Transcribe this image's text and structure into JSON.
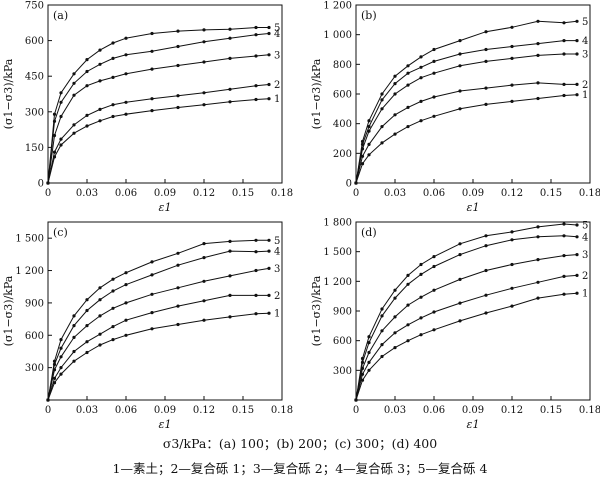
{
  "caption": {
    "conditions": "σ3/kPa：(a) 100；(b) 200；(c) 300；(d) 400",
    "legend": "1—素土；2—复合砾 1；3—复合砾 2；4—复合砾 3；5—复合砾 4"
  },
  "chart_data": [
    {
      "type": "line",
      "panel": "(a)",
      "xlabel": "ε1",
      "ylabel": "(σ1−σ3)/kPa",
      "xlim": [
        0,
        0.18
      ],
      "ylim": [
        0,
        750
      ],
      "xticks": [
        "0",
        "0.03",
        "0.06",
        "0.09",
        "0.12",
        "0.15",
        "0.18"
      ],
      "yticks": [
        "0",
        "150",
        "300",
        "450",
        "600",
        "750"
      ],
      "grid": false,
      "series": [
        {
          "name": "1",
          "x": [
            0,
            0.005,
            0.01,
            0.02,
            0.03,
            0.04,
            0.05,
            0.06,
            0.08,
            0.1,
            0.12,
            0.14,
            0.16,
            0.17
          ],
          "y": [
            0,
            110,
            160,
            210,
            240,
            262,
            280,
            290,
            305,
            318,
            330,
            342,
            352,
            355
          ]
        },
        {
          "name": "2",
          "x": [
            0,
            0.005,
            0.01,
            0.02,
            0.03,
            0.04,
            0.05,
            0.06,
            0.08,
            0.1,
            0.12,
            0.14,
            0.16,
            0.17
          ],
          "y": [
            0,
            130,
            185,
            245,
            285,
            310,
            330,
            340,
            355,
            368,
            380,
            395,
            410,
            415
          ]
        },
        {
          "name": "3",
          "x": [
            0,
            0.005,
            0.01,
            0.02,
            0.03,
            0.04,
            0.05,
            0.06,
            0.08,
            0.1,
            0.12,
            0.14,
            0.16,
            0.17
          ],
          "y": [
            0,
            200,
            280,
            370,
            410,
            430,
            445,
            460,
            480,
            495,
            510,
            525,
            535,
            540
          ]
        },
        {
          "name": "4",
          "x": [
            0,
            0.005,
            0.01,
            0.02,
            0.03,
            0.04,
            0.05,
            0.06,
            0.08,
            0.1,
            0.12,
            0.14,
            0.16,
            0.17
          ],
          "y": [
            0,
            260,
            340,
            420,
            470,
            500,
            525,
            540,
            555,
            575,
            595,
            610,
            625,
            630
          ]
        },
        {
          "name": "5",
          "x": [
            0,
            0.005,
            0.01,
            0.02,
            0.03,
            0.04,
            0.05,
            0.06,
            0.08,
            0.1,
            0.12,
            0.14,
            0.16,
            0.17
          ],
          "y": [
            0,
            290,
            380,
            460,
            520,
            560,
            590,
            610,
            630,
            640,
            645,
            648,
            655,
            655
          ]
        }
      ]
    },
    {
      "type": "line",
      "panel": "(b)",
      "xlabel": "ε1",
      "ylabel": "(σ1−σ3)/kPa",
      "xlim": [
        0,
        0.18
      ],
      "ylim": [
        0,
        1200
      ],
      "xticks": [
        "0",
        "0.03",
        "0.06",
        "0.09",
        "0.12",
        "0.15",
        "0.18"
      ],
      "yticks": [
        "0",
        "200",
        "400",
        "600",
        "800",
        "1 000",
        "1 200"
      ],
      "grid": false,
      "series": [
        {
          "name": "1",
          "x": [
            0,
            0.005,
            0.01,
            0.02,
            0.03,
            0.04,
            0.05,
            0.06,
            0.08,
            0.1,
            0.12,
            0.14,
            0.16,
            0.17
          ],
          "y": [
            0,
            130,
            190,
            270,
            330,
            380,
            420,
            450,
            500,
            530,
            550,
            570,
            590,
            595
          ]
        },
        {
          "name": "2",
          "x": [
            0,
            0.005,
            0.01,
            0.02,
            0.03,
            0.04,
            0.05,
            0.06,
            0.08,
            0.1,
            0.12,
            0.14,
            0.16,
            0.17
          ],
          "y": [
            0,
            180,
            260,
            380,
            460,
            510,
            550,
            580,
            620,
            640,
            660,
            675,
            665,
            665
          ]
        },
        {
          "name": "3",
          "x": [
            0,
            0.005,
            0.01,
            0.02,
            0.03,
            0.04,
            0.05,
            0.06,
            0.08,
            0.1,
            0.12,
            0.14,
            0.16,
            0.17
          ],
          "y": [
            0,
            230,
            350,
            500,
            600,
            660,
            710,
            740,
            790,
            820,
            840,
            860,
            870,
            870
          ]
        },
        {
          "name": "4",
          "x": [
            0,
            0.005,
            0.01,
            0.02,
            0.03,
            0.04,
            0.05,
            0.06,
            0.08,
            0.1,
            0.12,
            0.14,
            0.16,
            0.17
          ],
          "y": [
            0,
            260,
            380,
            560,
            670,
            740,
            780,
            820,
            870,
            900,
            920,
            940,
            960,
            960
          ]
        },
        {
          "name": "5",
          "x": [
            0,
            0.005,
            0.01,
            0.02,
            0.03,
            0.04,
            0.05,
            0.06,
            0.08,
            0.1,
            0.12,
            0.14,
            0.16,
            0.17
          ],
          "y": [
            0,
            280,
            420,
            600,
            720,
            790,
            850,
            900,
            960,
            1020,
            1050,
            1090,
            1080,
            1090
          ]
        }
      ]
    },
    {
      "type": "line",
      "panel": "(c)",
      "xlabel": "ε1",
      "ylabel": "(σ1−σ3)/kPa",
      "xlim": [
        0,
        0.18
      ],
      "ylim": [
        0,
        1650
      ],
      "xticks": [
        "0",
        "0.03",
        "0.06",
        "0.09",
        "0.12",
        "0.15",
        "0.18"
      ],
      "yticks": [
        "300",
        "600",
        "900",
        "1 200",
        "1 500"
      ],
      "grid": false,
      "series": [
        {
          "name": "1",
          "x": [
            0,
            0.005,
            0.01,
            0.02,
            0.03,
            0.04,
            0.05,
            0.06,
            0.08,
            0.1,
            0.12,
            0.14,
            0.16,
            0.17
          ],
          "y": [
            0,
            160,
            240,
            360,
            440,
            510,
            560,
            600,
            660,
            700,
            740,
            770,
            800,
            805
          ]
        },
        {
          "name": "2",
          "x": [
            0,
            0.005,
            0.01,
            0.02,
            0.03,
            0.04,
            0.05,
            0.06,
            0.08,
            0.1,
            0.12,
            0.14,
            0.16,
            0.17
          ],
          "y": [
            0,
            200,
            300,
            450,
            540,
            610,
            680,
            740,
            810,
            870,
            920,
            970,
            970,
            970
          ]
        },
        {
          "name": "3",
          "x": [
            0,
            0.005,
            0.01,
            0.02,
            0.03,
            0.04,
            0.05,
            0.06,
            0.08,
            0.1,
            0.12,
            0.14,
            0.16,
            0.17
          ],
          "y": [
            0,
            280,
            400,
            580,
            690,
            780,
            850,
            900,
            980,
            1040,
            1100,
            1150,
            1200,
            1220
          ]
        },
        {
          "name": "4",
          "x": [
            0,
            0.005,
            0.01,
            0.02,
            0.03,
            0.04,
            0.05,
            0.06,
            0.08,
            0.1,
            0.12,
            0.14,
            0.16,
            0.17
          ],
          "y": [
            0,
            330,
            480,
            690,
            830,
            930,
            1010,
            1070,
            1160,
            1250,
            1320,
            1380,
            1375,
            1380
          ]
        },
        {
          "name": "5",
          "x": [
            0,
            0.005,
            0.01,
            0.02,
            0.03,
            0.04,
            0.05,
            0.06,
            0.08,
            0.1,
            0.12,
            0.14,
            0.16,
            0.17
          ],
          "y": [
            0,
            360,
            560,
            780,
            930,
            1040,
            1120,
            1180,
            1280,
            1360,
            1450,
            1470,
            1480,
            1480
          ]
        }
      ]
    },
    {
      "type": "line",
      "panel": "(d)",
      "xlabel": "ε1",
      "ylabel": "(σ1−σ3)/kPa",
      "xlim": [
        0,
        0.18
      ],
      "ylim": [
        0,
        1800
      ],
      "xticks": [
        "0",
        "0.03",
        "0.06",
        "0.09",
        "0.12",
        "0.15",
        "0.18"
      ],
      "yticks": [
        "300",
        "600",
        "900",
        "1 200",
        "1 500",
        "1 800"
      ],
      "grid": false,
      "series": [
        {
          "name": "1",
          "x": [
            0,
            0.005,
            0.01,
            0.02,
            0.03,
            0.04,
            0.05,
            0.06,
            0.08,
            0.1,
            0.12,
            0.14,
            0.16,
            0.17
          ],
          "y": [
            0,
            200,
            300,
            440,
            530,
            600,
            660,
            710,
            800,
            880,
            950,
            1030,
            1070,
            1080
          ]
        },
        {
          "name": "2",
          "x": [
            0,
            0.005,
            0.01,
            0.02,
            0.03,
            0.04,
            0.05,
            0.06,
            0.08,
            0.1,
            0.12,
            0.14,
            0.16,
            0.17
          ],
          "y": [
            0,
            260,
            380,
            560,
            680,
            760,
            830,
            890,
            980,
            1060,
            1130,
            1190,
            1250,
            1260
          ]
        },
        {
          "name": "3",
          "x": [
            0,
            0.005,
            0.01,
            0.02,
            0.03,
            0.04,
            0.05,
            0.06,
            0.08,
            0.1,
            0.12,
            0.14,
            0.16,
            0.17
          ],
          "y": [
            0,
            320,
            480,
            700,
            840,
            960,
            1040,
            1110,
            1220,
            1310,
            1370,
            1420,
            1460,
            1470
          ]
        },
        {
          "name": "4",
          "x": [
            0,
            0.005,
            0.01,
            0.02,
            0.03,
            0.04,
            0.05,
            0.06,
            0.08,
            0.1,
            0.12,
            0.14,
            0.16,
            0.17
          ],
          "y": [
            0,
            380,
            580,
            850,
            1030,
            1170,
            1270,
            1350,
            1470,
            1560,
            1620,
            1650,
            1660,
            1650
          ]
        },
        {
          "name": "5",
          "x": [
            0,
            0.005,
            0.01,
            0.02,
            0.03,
            0.04,
            0.05,
            0.06,
            0.08,
            0.1,
            0.12,
            0.14,
            0.16,
            0.17
          ],
          "y": [
            0,
            420,
            640,
            920,
            1110,
            1260,
            1370,
            1450,
            1580,
            1660,
            1700,
            1750,
            1780,
            1770
          ]
        }
      ]
    }
  ]
}
